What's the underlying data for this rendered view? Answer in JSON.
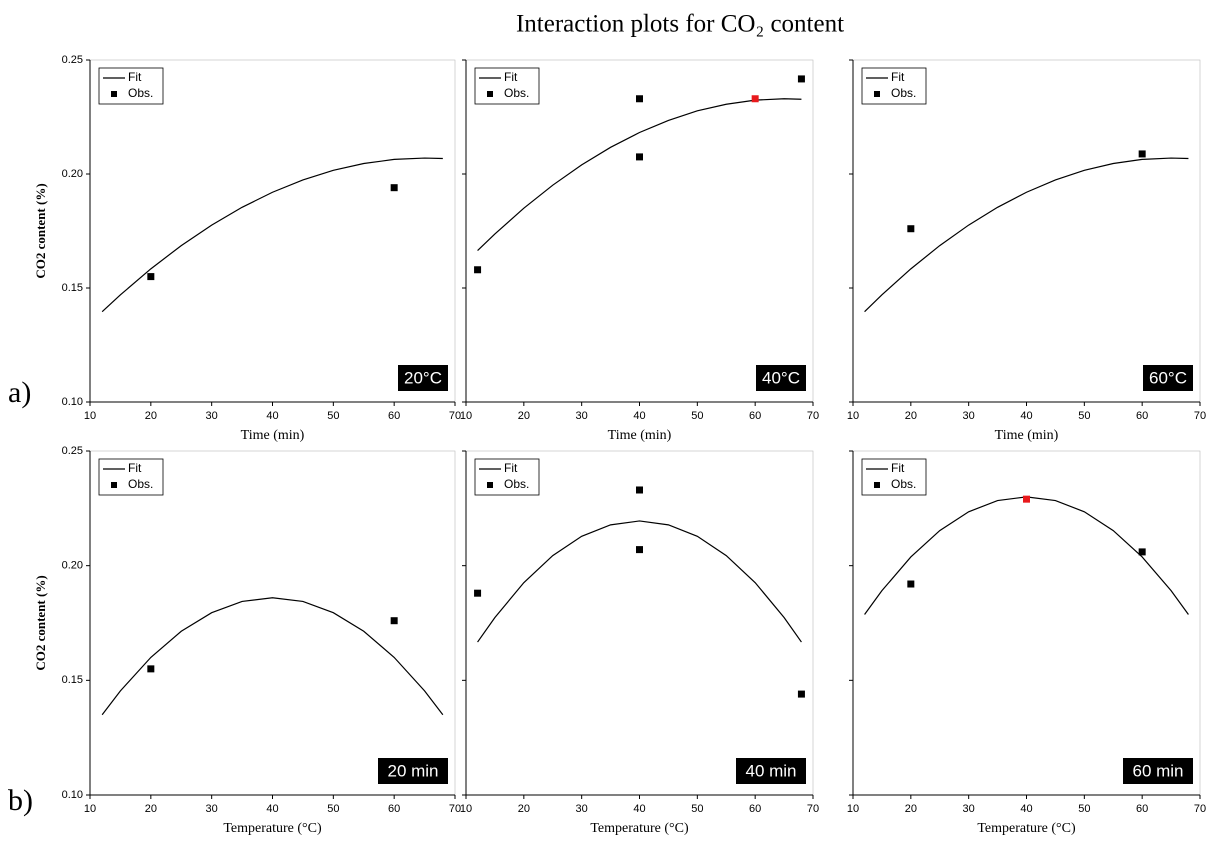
{
  "title": "Interaction plots for CO₂ content",
  "row_labels": [
    "a)",
    "b)"
  ],
  "chart_data": [
    {
      "type": "line",
      "annotation": "20°C",
      "xlabel": "Time (min)",
      "ylabel": "CO2 content (%)",
      "yticklabels": true,
      "xlim": [
        10,
        70
      ],
      "xticks": [
        10,
        20,
        30,
        40,
        50,
        60,
        70
      ],
      "ylim": [
        0.1,
        0.25
      ],
      "yticks": [
        {
          "value": 0.1,
          "label": "0.10"
        },
        0.15,
        {
          "value": 0.2,
          "label": "0.20"
        },
        0.25
      ],
      "legend": "upper left",
      "series": [
        {
          "name": "Fit",
          "type": "line",
          "color": "#000000",
          "x": [
            12,
            15,
            20,
            25,
            30,
            35,
            40,
            45,
            50,
            55,
            60,
            65,
            68
          ],
          "values": [
            0.1396,
            0.147,
            0.1584,
            0.1686,
            0.1776,
            0.1854,
            0.192,
            0.1974,
            0.2016,
            0.2046,
            0.2064,
            0.207,
            0.2068
          ]
        },
        {
          "name": "Obs.",
          "type": "scatter",
          "x": [
            20,
            60
          ],
          "values": [
            0.155,
            0.194
          ],
          "colors": [
            "#000000",
            "#000000"
          ]
        }
      ]
    },
    {
      "type": "line",
      "annotation": "40°C",
      "xlabel": "Time (min)",
      "yticklabels": false,
      "xlim": [
        10,
        70
      ],
      "xticks": [
        10,
        20,
        30,
        40,
        50,
        60,
        70
      ],
      "ylim": [
        0.1,
        0.25
      ],
      "yticks": [
        0.1,
        0.15,
        0.2,
        0.25
      ],
      "legend": "upper left",
      "series": [
        {
          "name": "Fit",
          "type": "line",
          "color": "#000000",
          "x": [
            12,
            15,
            20,
            25,
            30,
            35,
            40,
            45,
            50,
            55,
            60,
            65,
            68
          ],
          "values": [
            0.1664,
            0.1737,
            0.185,
            0.1951,
            0.204,
            0.2117,
            0.2182,
            0.2235,
            0.2277,
            0.2306,
            0.2324,
            0.233,
            0.2328
          ]
        },
        {
          "name": "Obs.",
          "type": "scatter",
          "x": [
            12,
            40,
            40,
            60,
            68
          ],
          "values": [
            0.158,
            0.233,
            0.2075,
            0.233,
            0.2417
          ],
          "colors": [
            "#000000",
            "#000000",
            "#000000",
            "#e8191c",
            "#000000"
          ]
        }
      ]
    },
    {
      "type": "line",
      "annotation": "60°C",
      "xlabel": "Time (min)",
      "yticklabels": false,
      "xlim": [
        10,
        70
      ],
      "xticks": [
        10,
        20,
        30,
        40,
        50,
        60,
        70
      ],
      "ylim": [
        0.1,
        0.25
      ],
      "yticks": [
        0.1,
        0.15,
        0.2,
        0.25
      ],
      "legend": "upper left",
      "series": [
        {
          "name": "Fit",
          "type": "line",
          "color": "#000000",
          "x": [
            12,
            15,
            20,
            25,
            30,
            35,
            40,
            45,
            50,
            55,
            60,
            65,
            68
          ],
          "values": [
            0.1396,
            0.147,
            0.1584,
            0.1686,
            0.1776,
            0.1854,
            0.192,
            0.1974,
            0.2016,
            0.2046,
            0.2064,
            0.207,
            0.2068
          ]
        },
        {
          "name": "Obs.",
          "type": "scatter",
          "x": [
            20,
            60
          ],
          "values": [
            0.176,
            0.2088
          ],
          "colors": [
            "#000000",
            "#000000"
          ]
        }
      ]
    },
    {
      "type": "line",
      "annotation": "20 min",
      "xlabel": "Temperature (°C)",
      "ylabel": "CO2 content (%)",
      "yticklabels": true,
      "xlim": [
        10,
        70
      ],
      "xticks": [
        10,
        20,
        30,
        40,
        50,
        60,
        70
      ],
      "ylim": [
        0.1,
        0.25
      ],
      "yticks": [
        {
          "value": 0.1,
          "label": "0.10"
        },
        0.15,
        {
          "value": 0.2,
          "label": "0.20"
        },
        0.25
      ],
      "legend": "upper left",
      "series": [
        {
          "name": "Fit",
          "type": "line",
          "color": "#000000",
          "x": [
            12,
            15,
            20,
            25,
            30,
            35,
            40,
            45,
            50,
            55,
            60,
            65,
            68
          ],
          "values": [
            0.135,
            0.1454,
            0.16,
            0.1714,
            0.1795,
            0.1844,
            0.186,
            0.1844,
            0.1795,
            0.1714,
            0.16,
            0.1454,
            0.135
          ]
        },
        {
          "name": "Obs.",
          "type": "scatter",
          "x": [
            20,
            60
          ],
          "values": [
            0.155,
            0.176
          ],
          "colors": [
            "#000000",
            "#000000"
          ]
        }
      ]
    },
    {
      "type": "line",
      "annotation": "40 min",
      "xlabel": "Temperature (°C)",
      "yticklabels": false,
      "xlim": [
        10,
        70
      ],
      "xticks": [
        10,
        20,
        30,
        40,
        50,
        60,
        70
      ],
      "ylim": [
        0.1,
        0.25
      ],
      "yticks": [
        0.1,
        0.15,
        0.2,
        0.25
      ],
      "legend": "upper left",
      "series": [
        {
          "name": "Fit",
          "type": "line",
          "color": "#000000",
          "x": [
            12,
            15,
            20,
            25,
            30,
            35,
            40,
            45,
            50,
            55,
            60,
            65,
            68
          ],
          "values": [
            0.1667,
            0.1774,
            0.1926,
            0.2044,
            0.2128,
            0.2178,
            0.2195,
            0.2178,
            0.2128,
            0.2044,
            0.1926,
            0.1774,
            0.1667
          ]
        },
        {
          "name": "Obs.",
          "type": "scatter",
          "x": [
            12,
            40,
            40,
            68
          ],
          "values": [
            0.188,
            0.233,
            0.207,
            0.144
          ],
          "colors": [
            "#000000",
            "#000000",
            "#000000",
            "#000000"
          ]
        }
      ]
    },
    {
      "type": "line",
      "annotation": "60 min",
      "xlabel": "Temperature (°C)",
      "yticklabels": false,
      "xlim": [
        10,
        70
      ],
      "xticks": [
        10,
        20,
        30,
        40,
        50,
        60,
        70
      ],
      "ylim": [
        0.1,
        0.25
      ],
      "yticks": [
        0.1,
        0.15,
        0.2,
        0.25
      ],
      "legend": "upper left",
      "series": [
        {
          "name": "Fit",
          "type": "line",
          "color": "#000000",
          "x": [
            12,
            15,
            20,
            25,
            30,
            35,
            40,
            45,
            50,
            55,
            60,
            65,
            68
          ],
          "values": [
            0.1787,
            0.1891,
            0.2038,
            0.2153,
            0.2235,
            0.2284,
            0.23,
            0.2284,
            0.2235,
            0.2153,
            0.2038,
            0.1891,
            0.1787
          ]
        },
        {
          "name": "Obs.",
          "type": "scatter",
          "x": [
            20,
            40,
            60
          ],
          "values": [
            0.192,
            0.229,
            0.206
          ],
          "colors": [
            "#000000",
            "#e8191c",
            "#000000"
          ]
        }
      ]
    }
  ]
}
